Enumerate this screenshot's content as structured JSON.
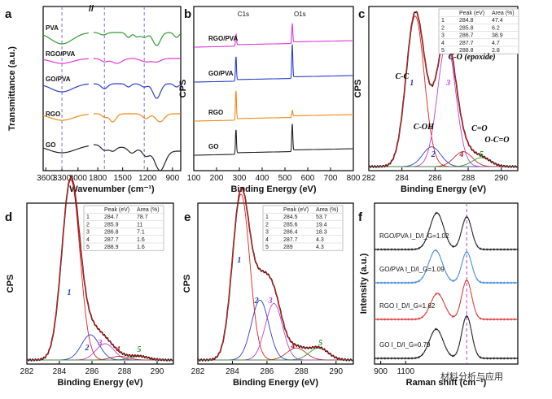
{
  "chart_data": [
    {
      "id": "a",
      "type": "line",
      "panel_label": "a",
      "xlabel": "Wavenumber (cm⁻¹)",
      "ylabel": "Transmittance (a.u.)",
      "xlim": [
        3650,
        800
      ],
      "x_ticks": [
        "3600",
        "3300",
        "3000",
        "1800",
        "1500",
        "1200",
        "900"
      ],
      "axis_break": "yes",
      "series": [
        {
          "name": "PVA",
          "color": "#2e9c2e"
        },
        {
          "name": "RGO/PVA",
          "color": "#e038d8"
        },
        {
          "name": "GO/PVA",
          "color": "#2a3fd0"
        },
        {
          "name": "RGO",
          "color": "#f08a1a"
        },
        {
          "name": "GO",
          "color": "#222222"
        }
      ],
      "reference_lines_cm1": [
        3300,
        1720,
        1240
      ]
    },
    {
      "id": "b",
      "type": "line",
      "panel_label": "b",
      "xlabel": "Binding Energy (eV)",
      "ylabel": "CPS",
      "xlim": [
        100,
        800
      ],
      "x_ticks": [
        "100",
        "200",
        "300",
        "400",
        "500",
        "600",
        "700",
        "800"
      ],
      "series": [
        {
          "name": "RGO/PVA",
          "color": "#e038d8"
        },
        {
          "name": "GO/PVA",
          "color": "#2a3fd0"
        },
        {
          "name": "RGO",
          "color": "#f08a1a"
        },
        {
          "name": "GO",
          "color": "#222222"
        }
      ],
      "annotations": [
        "C1s",
        "O1s"
      ]
    },
    {
      "id": "c",
      "type": "line",
      "panel_label": "c",
      "xlabel": "Binding Energy (eV)",
      "ylabel": "CPS",
      "xlim": [
        282,
        291
      ],
      "x_ticks": [
        "282",
        "284",
        "286",
        "288",
        "290"
      ],
      "table": {
        "headers": [
          "",
          "Peak (eV)",
          "Area (%)"
        ],
        "rows": [
          [
            "1",
            "284.8",
            "47.4"
          ],
          [
            "2",
            "285.8",
            "6.2"
          ],
          [
            "3",
            "286.7",
            "38.9"
          ],
          [
            "4",
            "287.7",
            "4.7"
          ],
          [
            "5",
            "288.8",
            "2.8"
          ]
        ]
      },
      "peak_numbers": [
        "1",
        "2",
        "3",
        "4",
        "5"
      ],
      "peak_labels": [
        "C-C",
        "C-OH",
        "C-O (epoxide)",
        "C=O",
        "O-C=O"
      ]
    },
    {
      "id": "d",
      "type": "line",
      "panel_label": "d",
      "xlabel": "Binding Energy (eV)",
      "ylabel": "CPS",
      "xlim": [
        282,
        291
      ],
      "x_ticks": [
        "282",
        "284",
        "286",
        "288",
        "290"
      ],
      "table": {
        "headers": [
          "",
          "Peak (eV)",
          "Area (%)"
        ],
        "rows": [
          [
            "1",
            "284.7",
            "78.7"
          ],
          [
            "2",
            "285.9",
            "11"
          ],
          [
            "3",
            "286.8",
            "7.1"
          ],
          [
            "4",
            "287.7",
            "1.6"
          ],
          [
            "5",
            "288.9",
            "1.6"
          ]
        ]
      },
      "peak_numbers": [
        "1",
        "2",
        "3",
        "4",
        "5"
      ]
    },
    {
      "id": "e",
      "type": "line",
      "panel_label": "e",
      "xlabel": "Binding Energy (eV)",
      "ylabel": "CPS",
      "xlim": [
        282,
        291
      ],
      "x_ticks": [
        "282",
        "284",
        "286",
        "288",
        "290"
      ],
      "table": {
        "headers": [
          "",
          "Peak (eV)",
          "Area (%)"
        ],
        "rows": [
          [
            "1",
            "284.5",
            "53.7"
          ],
          [
            "2",
            "285.6",
            "19.4"
          ],
          [
            "3",
            "286.4",
            "18.3"
          ],
          [
            "4",
            "287.7",
            "4.3"
          ],
          [
            "5",
            "289",
            "4.3"
          ]
        ]
      },
      "peak_numbers": [
        "1",
        "2",
        "3",
        "4",
        "5"
      ]
    },
    {
      "id": "f",
      "type": "line",
      "panel_label": "f",
      "xlabel": "Raman shift (cm⁻¹)",
      "ylabel": "Intensity (a.u.)",
      "xlim": [
        850,
        2000
      ],
      "x_ticks": [
        "900",
        "1100"
      ],
      "series": [
        {
          "name": "RGO/PVA  I_D/I_G=1.02",
          "color": "#222222"
        },
        {
          "name": "GO/PVA  I_D/I_G=1.09",
          "color": "#4a90d9"
        },
        {
          "name": "RGO  I_D/I_G=1.62",
          "color": "#e04040"
        },
        {
          "name": "GO  I_D/I_G=0.79",
          "color": "#222222"
        }
      ]
    }
  ],
  "watermark": "材料分析与应用"
}
